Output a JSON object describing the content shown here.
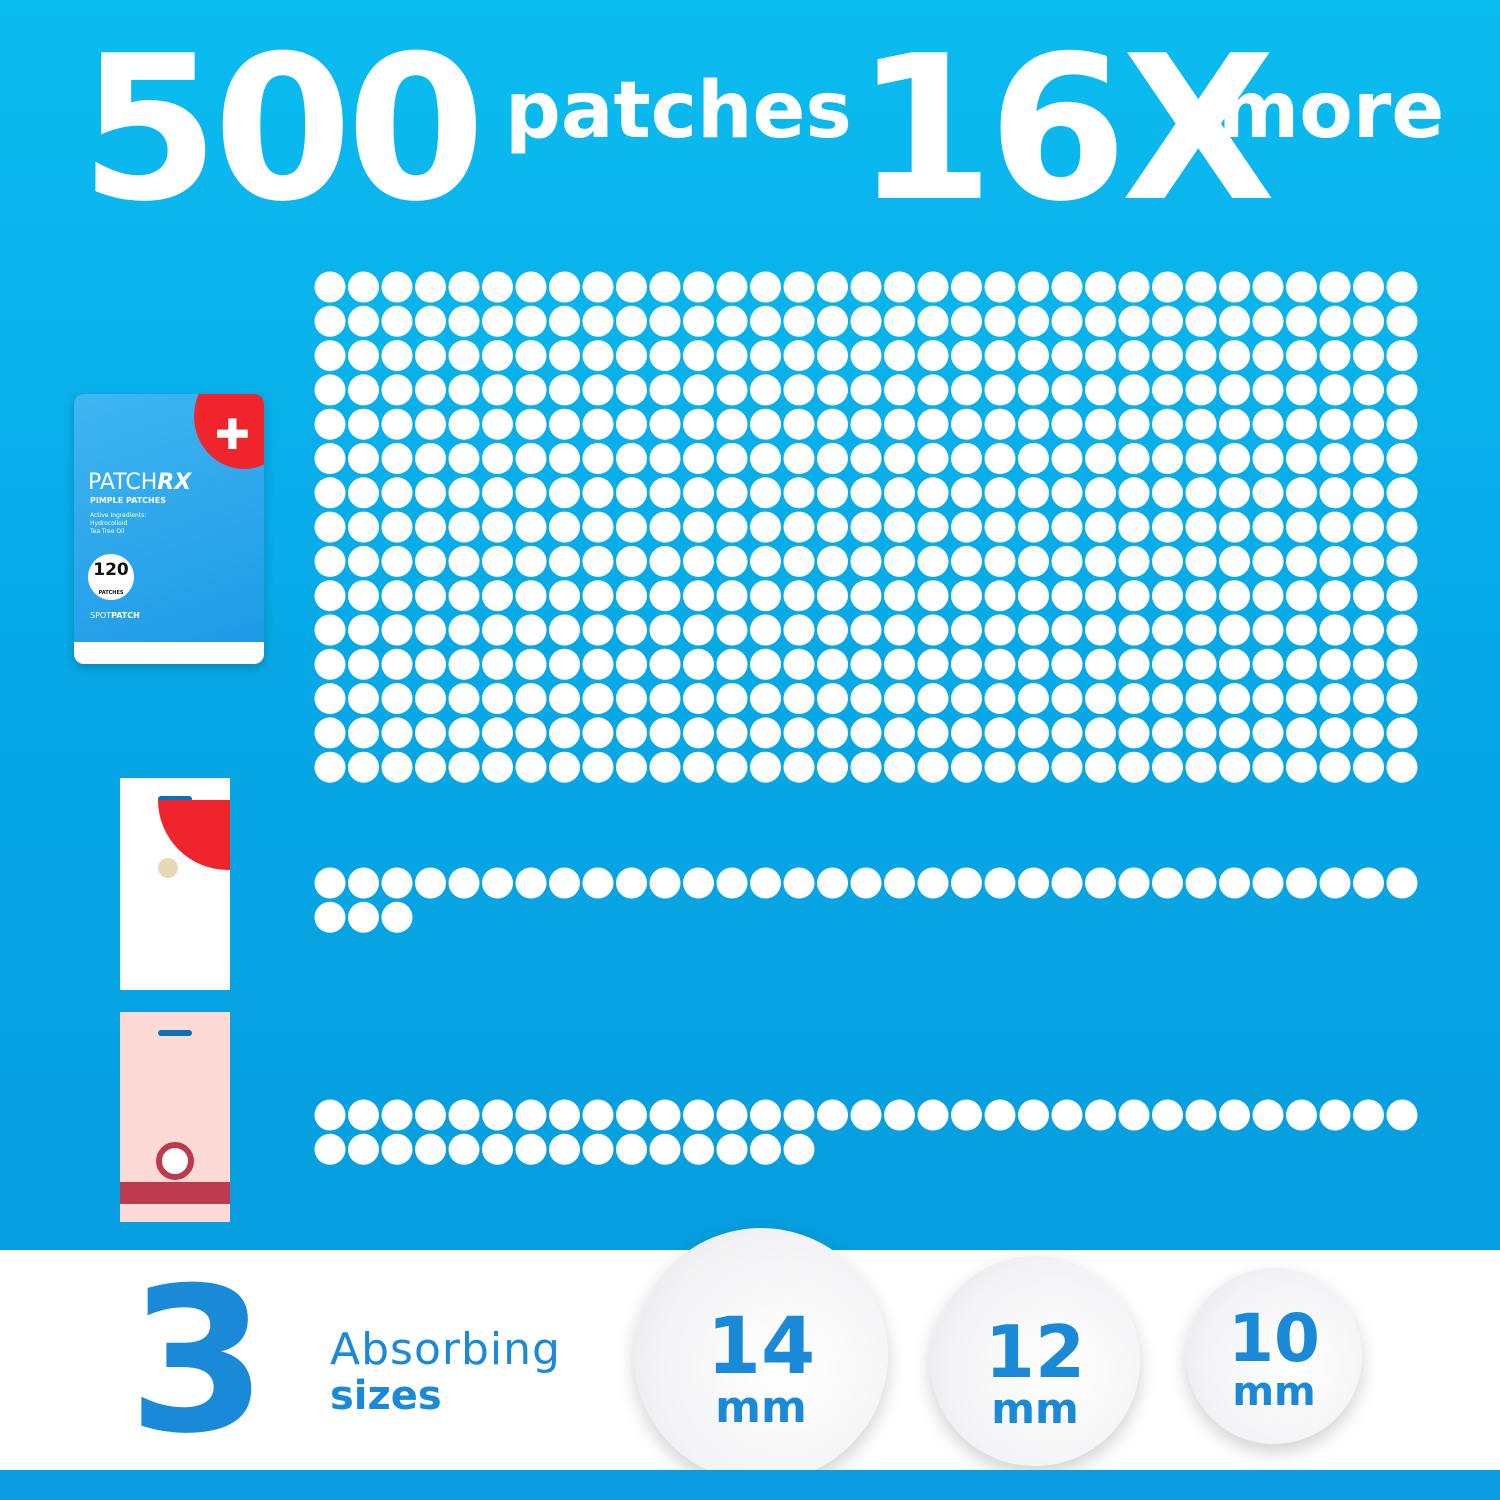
{
  "headline": {
    "count": "500",
    "count_label": "patches",
    "multiplier": "16X",
    "multiplier_label": "more"
  },
  "products": {
    "pouch": {
      "brand_light": "PATCH",
      "brand_bold": "RX",
      "subtitle": "PIMPLE PATCHES",
      "ingredients_label": "Active Ingredients:",
      "ingredient_1": "Hydrocolloid",
      "ingredient_2": "Tea Tree Oil",
      "badge_count": "120",
      "badge_label": "PATCHES",
      "line_light": "SPOT",
      "line_bold": "PATCH"
    }
  },
  "patch_groups": [
    {
      "product": "pouch",
      "rows": [
        33,
        33,
        33,
        33,
        33,
        33,
        33,
        33,
        33,
        33,
        33,
        33,
        33,
        33,
        33
      ]
    },
    {
      "product": "white-card",
      "rows": [
        33,
        3
      ]
    },
    {
      "product": "pink-card",
      "rows": [
        33,
        15
      ]
    }
  ],
  "sizes": {
    "count": "3",
    "label_1": "Absorbing",
    "label_2": "sizes",
    "items": [
      {
        "value": "14",
        "unit": "mm"
      },
      {
        "value": "12",
        "unit": "mm"
      },
      {
        "value": "10",
        "unit": "mm"
      }
    ]
  },
  "colors": {
    "background": "#06a8e6",
    "text_blue": "#1a8ad8",
    "red": "#f0242c",
    "pink_card": "#fddad6",
    "pink_accent": "#bd3a4e"
  }
}
